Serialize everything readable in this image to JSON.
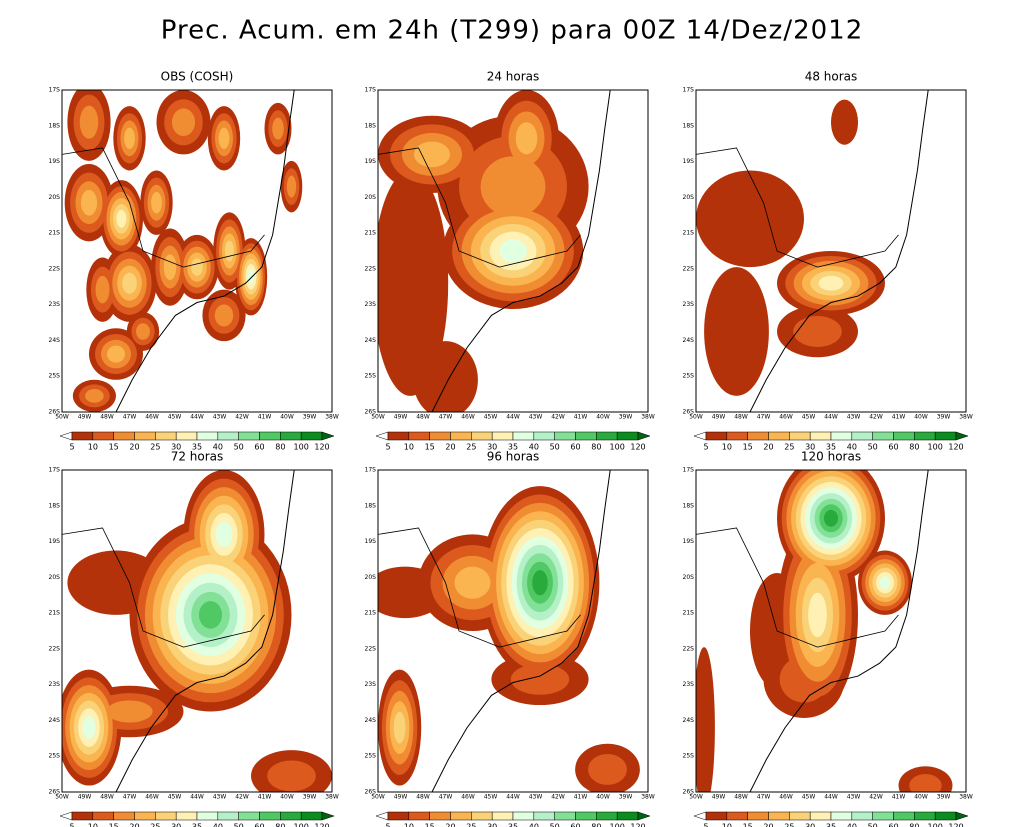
{
  "header": {
    "title": "Prec. Acum. em 24h (T299) para 00Z 14/Dez/2012"
  },
  "panels": [
    {
      "title": "OBS (COSH)"
    },
    {
      "title": "24 horas"
    },
    {
      "title": "48 horas"
    },
    {
      "title": "72 horas"
    },
    {
      "title": "96 horas"
    },
    {
      "title": "120 horas"
    }
  ],
  "lat_labels": [
    "17S",
    "18S",
    "19S",
    "20S",
    "21S",
    "22S",
    "23S",
    "24S",
    "25S",
    "26S"
  ],
  "lon_labels": [
    "50W",
    "49W",
    "48W",
    "47W",
    "46W",
    "45W",
    "44W",
    "43W",
    "42W",
    "41W",
    "40W",
    "39W",
    "38W"
  ],
  "colorbar": {
    "labels": [
      5,
      10,
      15,
      20,
      25,
      30,
      35,
      40,
      50,
      60,
      80,
      100,
      120
    ],
    "colors": [
      "#ffffff",
      "#b4320a",
      "#dc5a1e",
      "#f08c32",
      "#fab450",
      "#fad278",
      "#fff0b4",
      "#e1ffe1",
      "#b4f0c8",
      "#82e196",
      "#50c864",
      "#28aa3c",
      "#0a8c1e",
      "#006414"
    ]
  }
}
